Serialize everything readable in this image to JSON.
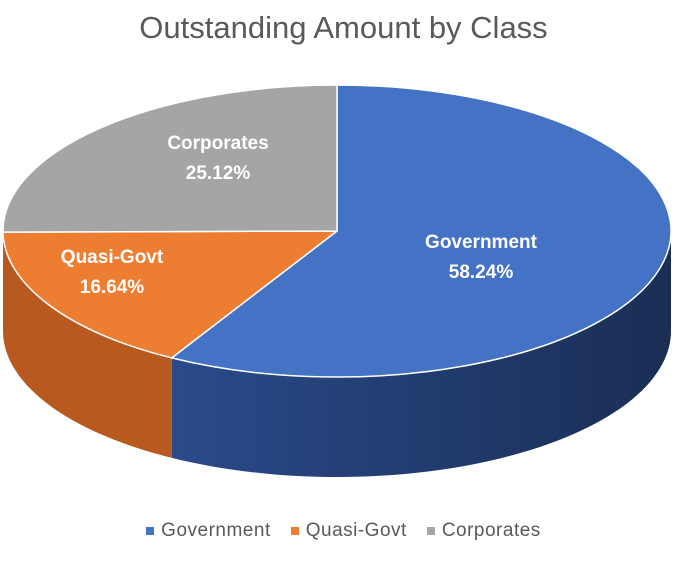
{
  "chart_data": {
    "type": "pie",
    "title": "Outstanding Amount by Class",
    "categories": [
      "Government",
      "Quasi-Govt",
      "Corporates"
    ],
    "values": [
      58.24,
      16.64,
      25.12
    ],
    "value_labels": [
      "58.24%",
      "16.64%",
      "25.12%"
    ],
    "colors": [
      "#4472C4",
      "#ED7D31",
      "#A5A5A5"
    ],
    "side_colors": [
      "#2a4a8a",
      "#b8591f",
      "#7a7a7a"
    ],
    "legend_position": "bottom",
    "style": "3d"
  }
}
